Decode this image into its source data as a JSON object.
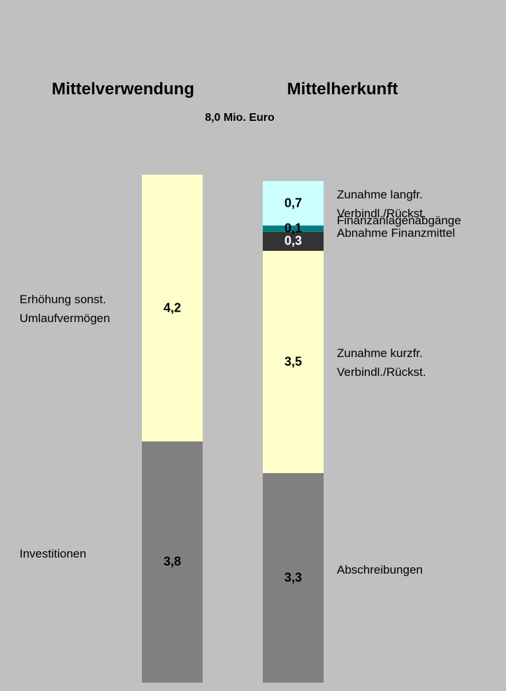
{
  "chart_data": {
    "type": "stacked_bar",
    "subtitle": "8,0 Mio. Euro",
    "categories": [
      "Mittelverwendung",
      "Mittelherkunft"
    ],
    "ylim": [
      0,
      8
    ],
    "series": [
      {
        "name": "Investitionen",
        "color": "#808080",
        "values": [
          3.8,
          null
        ],
        "value_labels": [
          "3,8",
          null
        ]
      },
      {
        "name": "Erhöhung sonst.\nUmlaufvermögen",
        "color": "#ffffcc",
        "values": [
          4.2,
          null
        ],
        "value_labels": [
          "4,2",
          null
        ]
      },
      {
        "name": "Abschreibungen",
        "color": "#808080",
        "values": [
          null,
          3.3
        ],
        "value_labels": [
          null,
          "3,3"
        ]
      },
      {
        "name": "Zunahme kurzfr.\nVerbindl./Rückst.",
        "color": "#ffffcc",
        "values": [
          null,
          3.5
        ],
        "value_labels": [
          null,
          "3,5"
        ]
      },
      {
        "name": "Abnahme Finanzmittel",
        "color": "#333333",
        "values": [
          null,
          0.3
        ],
        "value_labels": [
          null,
          "0,3"
        ]
      },
      {
        "name": "Finanzanlagenabgänge",
        "color": "#008080",
        "values": [
          null,
          0.1
        ],
        "value_labels": [
          null,
          "0,1"
        ]
      },
      {
        "name": "Zunahme langfr.\nVerbindl./Rückst.",
        "color": "#ccffff",
        "values": [
          null,
          0.7
        ],
        "value_labels": [
          null,
          "0,7"
        ]
      }
    ]
  }
}
